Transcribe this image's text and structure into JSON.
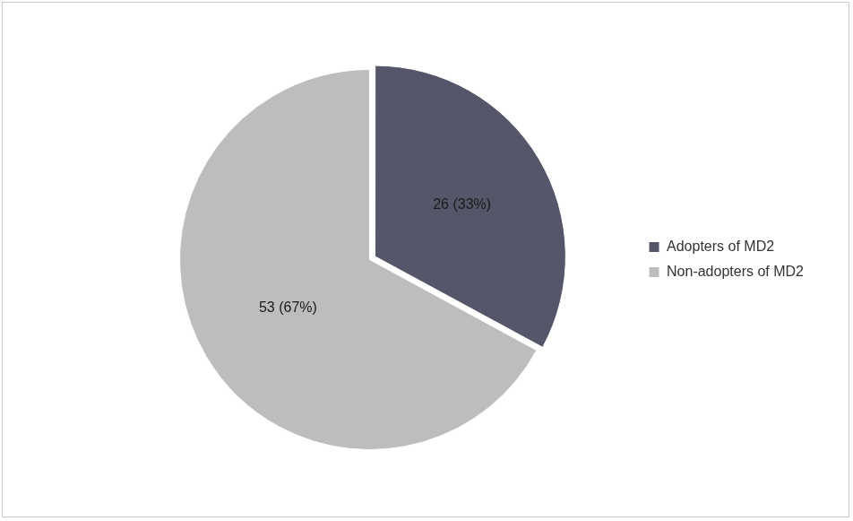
{
  "chart_data": {
    "type": "pie",
    "categories": [
      "Adopters of MD2",
      "Non-adopters of MD2"
    ],
    "values": [
      26,
      53
    ],
    "value_labels": [
      "26 (33%)",
      "53 (67%)"
    ],
    "data_labels": true,
    "colors": [
      "#555669",
      "#bdbdbd"
    ],
    "legend": "right"
  }
}
